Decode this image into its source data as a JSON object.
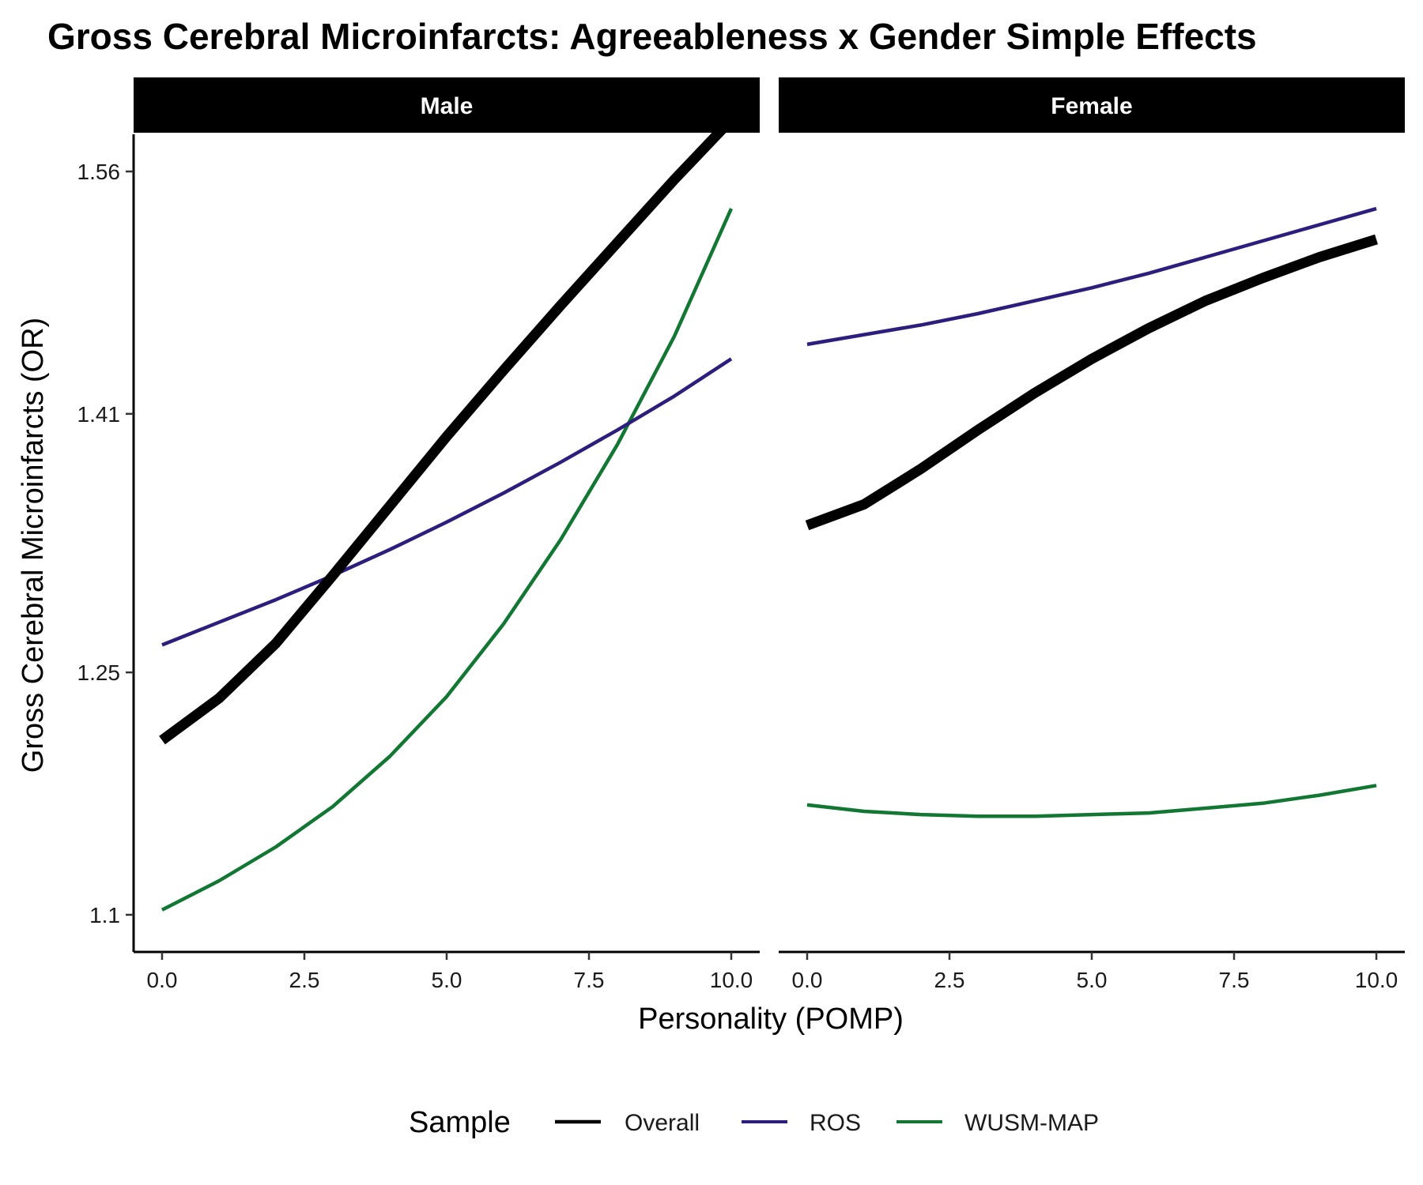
{
  "chart_data": {
    "type": "line",
    "title": "Gross Cerebral Microinfarcts: Agreeableness x Gender Simple Effects",
    "xlabel": "Personality (POMP)",
    "ylabel": "Gross Cerebral Microinfarcts (OR)",
    "x_ticks": [
      "0.0",
      "2.5",
      "5.0",
      "7.5",
      "10.0"
    ],
    "y_ticks": [
      "1.1",
      "1.25",
      "1.41",
      "1.56"
    ],
    "y_tick_values": [
      1.1,
      1.25,
      1.41,
      1.56
    ],
    "xlim": [
      -0.5,
      10.5
    ],
    "ylim": [
      1.077,
      1.583
    ],
    "grid": false,
    "legend": {
      "title": "Sample",
      "position": "bottom",
      "entries": [
        "Overall",
        "ROS",
        "WUSM-MAP"
      ]
    },
    "series_styles": {
      "Overall": {
        "color": "#000000",
        "width": 13
      },
      "ROS": {
        "color": "#2d1e7d",
        "width": 4.5
      },
      "WUSM-MAP": {
        "color": "#117733",
        "width": 4.5
      }
    },
    "x": [
      0,
      1,
      2,
      3,
      4,
      5,
      6,
      7,
      8,
      9,
      10
    ],
    "panels": [
      {
        "label": "Male",
        "series": [
          {
            "name": "Overall",
            "values": [
              1.208,
              1.234,
              1.268,
              1.31,
              1.353,
              1.396,
              1.437,
              1.477,
              1.516,
              1.555,
              1.592
            ]
          },
          {
            "name": "ROS",
            "values": [
              1.267,
              1.281,
              1.295,
              1.31,
              1.326,
              1.343,
              1.361,
              1.38,
              1.4,
              1.421,
              1.444
            ]
          },
          {
            "name": "WUSM-MAP",
            "values": [
              1.103,
              1.121,
              1.142,
              1.167,
              1.198,
              1.235,
              1.28,
              1.332,
              1.391,
              1.458,
              1.537
            ]
          }
        ]
      },
      {
        "label": "Female",
        "series": [
          {
            "name": "Overall",
            "values": [
              1.341,
              1.354,
              1.376,
              1.4,
              1.423,
              1.444,
              1.463,
              1.48,
              1.494,
              1.507,
              1.518
            ]
          },
          {
            "name": "ROS",
            "values": [
              1.453,
              1.459,
              1.465,
              1.472,
              1.48,
              1.488,
              1.497,
              1.507,
              1.517,
              1.527,
              1.537
            ]
          },
          {
            "name": "WUSM-MAP",
            "values": [
              1.168,
              1.164,
              1.162,
              1.161,
              1.161,
              1.162,
              1.163,
              1.166,
              1.169,
              1.174,
              1.18
            ]
          }
        ]
      }
    ]
  }
}
